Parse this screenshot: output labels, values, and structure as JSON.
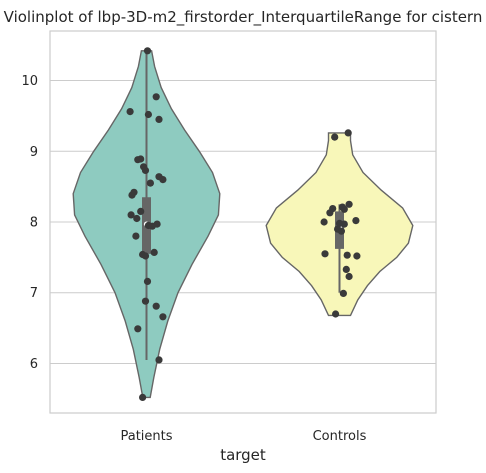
{
  "chart_data": {
    "type": "violin",
    "title": "Violinplot of lbp-3D-m2_firstorder_InterquartileRange for cistern",
    "xlabel": "target",
    "ylabel": "",
    "ylim": [
      5.3,
      10.7
    ],
    "yticks": [
      6,
      7,
      8,
      9,
      10
    ],
    "grid": true,
    "categories": [
      "Patients",
      "Controls"
    ],
    "colors": {
      "Patients": "#8ecbc0",
      "Controls": "#f8f7b9"
    },
    "violins": [
      {
        "category": "Patients",
        "min": 5.52,
        "max": 10.42,
        "q1": 7.55,
        "median": 7.97,
        "q3": 8.35,
        "whisker_low": 6.05,
        "whisker_high": 10.42,
        "density": [
          [
            5.52,
            0.05
          ],
          [
            5.8,
            0.1
          ],
          [
            6.2,
            0.18
          ],
          [
            6.6,
            0.29
          ],
          [
            7.0,
            0.43
          ],
          [
            7.4,
            0.62
          ],
          [
            7.8,
            0.84
          ],
          [
            8.1,
            0.98
          ],
          [
            8.4,
            1.0
          ],
          [
            8.7,
            0.9
          ],
          [
            9.0,
            0.72
          ],
          [
            9.3,
            0.52
          ],
          [
            9.6,
            0.34
          ],
          [
            9.9,
            0.2
          ],
          [
            10.2,
            0.11
          ],
          [
            10.42,
            0.07
          ]
        ],
        "points": [
          10.42,
          9.77,
          9.56,
          9.52,
          9.45,
          8.89,
          8.88,
          8.78,
          8.73,
          8.64,
          8.6,
          8.55,
          8.42,
          8.38,
          8.15,
          8.1,
          8.05,
          7.97,
          7.95,
          7.94,
          7.8,
          7.57,
          7.54,
          7.52,
          7.16,
          6.88,
          6.81,
          6.66,
          6.49,
          6.05,
          5.52
        ],
        "jitter": [
          0.01,
          0.1,
          -0.17,
          0.02,
          0.13,
          -0.06,
          -0.09,
          -0.03,
          -0.01,
          0.13,
          0.17,
          0.04,
          -0.13,
          -0.15,
          -0.06,
          -0.16,
          -0.1,
          0.11,
          0.02,
          0.06,
          -0.11,
          0.08,
          -0.04,
          -0.01,
          0.01,
          -0.01,
          0.1,
          0.17,
          -0.09,
          0.13,
          -0.04
        ]
      },
      {
        "category": "Controls",
        "min": 6.68,
        "max": 9.26,
        "q1": 7.62,
        "median": 7.92,
        "q3": 8.15,
        "whisker_low": 7.0,
        "whisker_high": 8.25,
        "density": [
          [
            6.68,
            0.15
          ],
          [
            6.9,
            0.25
          ],
          [
            7.1,
            0.38
          ],
          [
            7.3,
            0.55
          ],
          [
            7.5,
            0.78
          ],
          [
            7.7,
            0.94
          ],
          [
            7.95,
            1.0
          ],
          [
            8.2,
            0.86
          ],
          [
            8.45,
            0.57
          ],
          [
            8.7,
            0.32
          ],
          [
            8.95,
            0.18
          ],
          [
            9.15,
            0.15
          ],
          [
            9.26,
            0.15
          ]
        ],
        "points": [
          9.26,
          9.2,
          8.25,
          8.21,
          8.19,
          8.18,
          8.13,
          8.02,
          8.0,
          7.98,
          7.97,
          7.9,
          7.87,
          7.55,
          7.53,
          7.52,
          7.33,
          7.23,
          6.99,
          6.7
        ],
        "jitter": [
          0.09,
          -0.05,
          0.1,
          0.03,
          -0.07,
          0.05,
          -0.1,
          0.17,
          -0.16,
          0.0,
          0.05,
          -0.02,
          0.02,
          -0.15,
          0.08,
          0.18,
          0.07,
          0.1,
          0.04,
          -0.04
        ]
      }
    ]
  }
}
